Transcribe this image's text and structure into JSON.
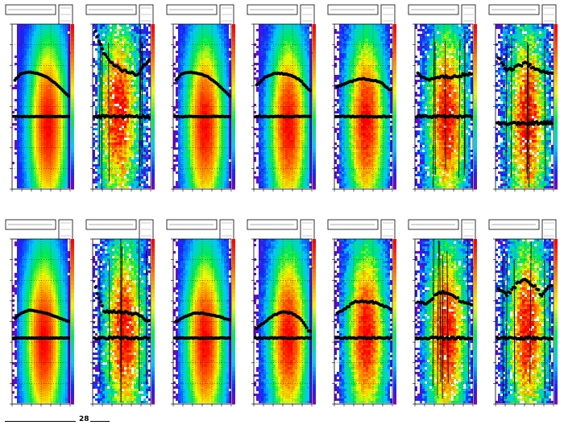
{
  "page": {
    "title": ""
  },
  "chart_data": [
    {
      "type": "heatmap",
      "panel": 1,
      "upper_curve": {
        "x": [
          0.05,
          0.15,
          0.3,
          0.45,
          0.6,
          0.75,
          0.9,
          0.98
        ],
        "y": [
          0.66,
          0.7,
          0.71,
          0.7,
          0.68,
          0.64,
          0.59,
          0.56
        ]
      },
      "lower_curve_y": 0.44,
      "hot_center": [
        0.62,
        0.38
      ],
      "noise": 0.1,
      "colorbar": {
        "colors": [
          "#7b00a8",
          "#0033ff",
          "#00ccff",
          "#00ee55",
          "#ffff00",
          "#ff7700",
          "#ff0000"
        ]
      }
    },
    {
      "type": "heatmap",
      "panel": 2,
      "upper_curve": {
        "x": [
          0.05,
          0.2,
          0.35,
          0.5,
          0.65,
          0.8,
          0.95
        ],
        "y": [
          0.95,
          0.82,
          0.76,
          0.72,
          0.7,
          0.7,
          0.78
        ]
      },
      "lower_curve_y": 0.44,
      "hot_center": [
        0.45,
        0.45
      ],
      "noise": 0.8,
      "colorbar": {
        "colors": [
          "#7b00a8",
          "#0033ff",
          "#00ccff",
          "#00ee55",
          "#ffff00",
          "#ff7700",
          "#ff0000"
        ]
      }
    },
    {
      "type": "heatmap",
      "panel": 3,
      "upper_curve": {
        "x": [
          0.05,
          0.15,
          0.3,
          0.45,
          0.6,
          0.75,
          0.9,
          0.98
        ],
        "y": [
          0.66,
          0.7,
          0.71,
          0.7,
          0.68,
          0.64,
          0.59,
          0.56
        ]
      },
      "lower_curve_y": 0.44,
      "hot_center": [
        0.55,
        0.38
      ],
      "noise": 0.15,
      "colorbar": {
        "colors": [
          "#7b00a8",
          "#0033ff",
          "#00ccff",
          "#00ee55",
          "#ffff00",
          "#ff7700",
          "#ff0000"
        ]
      }
    },
    {
      "type": "heatmap",
      "panel": 4,
      "upper_curve": {
        "x": [
          0.05,
          0.2,
          0.35,
          0.5,
          0.65,
          0.8,
          0.95
        ],
        "y": [
          0.63,
          0.68,
          0.7,
          0.7,
          0.69,
          0.66,
          0.6
        ]
      },
      "lower_curve_y": 0.44,
      "hot_center": [
        0.6,
        0.38
      ],
      "noise": 0.2,
      "colorbar": {
        "colors": [
          "#7b00a8",
          "#0033ff",
          "#00ccff",
          "#00ee55",
          "#ffff00",
          "#ff7700",
          "#ff0000"
        ]
      }
    },
    {
      "type": "heatmap",
      "panel": 5,
      "upper_curve": {
        "x": [
          0.05,
          0.2,
          0.35,
          0.5,
          0.65,
          0.8,
          0.95
        ],
        "y": [
          0.62,
          0.64,
          0.66,
          0.67,
          0.66,
          0.65,
          0.6
        ]
      },
      "lower_curve_y": 0.44,
      "hot_center": [
        0.55,
        0.4
      ],
      "noise": 0.3,
      "colorbar": {
        "colors": [
          "#7b00a8",
          "#0033ff",
          "#00ccff",
          "#00ee55",
          "#ffff00",
          "#ff7700",
          "#ff0000"
        ]
      }
    },
    {
      "type": "heatmap",
      "panel": 6,
      "upper_curve": {
        "x": [
          0.05,
          0.2,
          0.35,
          0.5,
          0.65,
          0.8,
          0.95
        ],
        "y": [
          0.7,
          0.66,
          0.68,
          0.68,
          0.68,
          0.69,
          0.7
        ]
      },
      "lower_curve_y": 0.44,
      "hot_center": [
        0.55,
        0.42
      ],
      "noise": 0.6,
      "colorbar": {
        "colors": [
          "#7b00a8",
          "#0033ff",
          "#00ccff",
          "#00ee55",
          "#ffff00",
          "#ff7700",
          "#ff0000"
        ]
      }
    },
    {
      "type": "heatmap",
      "panel": 7,
      "upper_curve": {
        "x": [
          0.05,
          0.2,
          0.35,
          0.5,
          0.65,
          0.8,
          0.95
        ],
        "y": [
          0.8,
          0.72,
          0.74,
          0.76,
          0.74,
          0.72,
          0.7
        ]
      },
      "lower_curve_y": 0.4,
      "hot_center": [
        0.55,
        0.4
      ],
      "noise": 0.9,
      "colorbar": {
        "colors": [
          "#7b00a8",
          "#0033ff",
          "#00ccff",
          "#00ee55",
          "#ffff00",
          "#ff7700",
          "#ff0000"
        ]
      }
    },
    {
      "type": "heatmap",
      "panel": 8,
      "upper_curve": {
        "x": [
          0.05,
          0.15,
          0.3,
          0.45,
          0.6,
          0.75,
          0.9,
          0.98
        ],
        "y": [
          0.52,
          0.55,
          0.57,
          0.56,
          0.55,
          0.53,
          0.51,
          0.5
        ]
      },
      "lower_curve_y": 0.4,
      "hot_center": [
        0.55,
        0.38
      ],
      "noise": 0.1,
      "colorbar": {
        "colors": [
          "#7b00a8",
          "#0033ff",
          "#00ccff",
          "#00ee55",
          "#ffff00",
          "#ff7700",
          "#ff0000"
        ]
      }
    },
    {
      "type": "heatmap",
      "panel": 9,
      "upper_curve": {
        "x": [
          0.05,
          0.2,
          0.35,
          0.5,
          0.65,
          0.8,
          0.95
        ],
        "y": [
          0.7,
          0.56,
          0.56,
          0.56,
          0.55,
          0.54,
          0.5
        ]
      },
      "lower_curve_y": 0.4,
      "hot_center": [
        0.55,
        0.42
      ],
      "noise": 0.7,
      "colorbar": {
        "colors": [
          "#7b00a8",
          "#0033ff",
          "#00ccff",
          "#00ee55",
          "#ffff00",
          "#ff7700",
          "#ff0000"
        ]
      }
    },
    {
      "type": "heatmap",
      "panel": 10,
      "upper_curve": {
        "x": [
          0.05,
          0.2,
          0.35,
          0.5,
          0.65,
          0.8,
          0.95
        ],
        "y": [
          0.5,
          0.53,
          0.55,
          0.55,
          0.54,
          0.53,
          0.51
        ]
      },
      "lower_curve_y": 0.4,
      "hot_center": [
        0.55,
        0.38
      ],
      "noise": 0.15,
      "colorbar": {
        "colors": [
          "#7b00a8",
          "#0033ff",
          "#00ccff",
          "#00ee55",
          "#ffff00",
          "#ff7700",
          "#ff0000"
        ]
      }
    },
    {
      "type": "heatmap",
      "panel": 11,
      "upper_curve": {
        "x": [
          0.05,
          0.2,
          0.35,
          0.5,
          0.65,
          0.8,
          0.95
        ],
        "y": [
          0.46,
          0.5,
          0.54,
          0.56,
          0.55,
          0.52,
          0.44
        ]
      },
      "lower_curve_y": 0.4,
      "hot_center": [
        0.6,
        0.4
      ],
      "noise": 0.25,
      "colorbar": {
        "colors": [
          "#7b00a8",
          "#0033ff",
          "#00ccff",
          "#00ee55",
          "#ffff00",
          "#ff7700",
          "#ff0000"
        ]
      }
    },
    {
      "type": "heatmap",
      "panel": 12,
      "upper_curve": {
        "x": [
          0.05,
          0.2,
          0.35,
          0.5,
          0.65,
          0.8,
          0.95
        ],
        "y": [
          0.55,
          0.58,
          0.62,
          0.62,
          0.62,
          0.6,
          0.58
        ]
      },
      "lower_curve_y": 0.4,
      "hot_center": [
        0.55,
        0.42
      ],
      "noise": 0.4,
      "colorbar": {
        "colors": [
          "#7b00a8",
          "#0033ff",
          "#00ccff",
          "#00ee55",
          "#ffff00",
          "#ff7700",
          "#ff0000"
        ]
      }
    },
    {
      "type": "heatmap",
      "panel": 13,
      "upper_curve": {
        "x": [
          0.05,
          0.2,
          0.35,
          0.5,
          0.65,
          0.8,
          0.95
        ],
        "y": [
          0.62,
          0.6,
          0.66,
          0.68,
          0.66,
          0.62,
          0.6
        ]
      },
      "lower_curve_y": 0.4,
      "hot_center": [
        0.55,
        0.42
      ],
      "noise": 0.6,
      "colorbar": {
        "colors": [
          "#7b00a8",
          "#0033ff",
          "#00ccff",
          "#00ee55",
          "#ffff00",
          "#ff7700",
          "#ff0000"
        ]
      }
    },
    {
      "type": "heatmap",
      "panel": 14,
      "upper_curve": {
        "x": [
          0.05,
          0.2,
          0.35,
          0.5,
          0.65,
          0.8,
          0.95
        ],
        "y": [
          0.7,
          0.66,
          0.72,
          0.76,
          0.72,
          0.66,
          0.72
        ]
      },
      "lower_curve_y": 0.4,
      "hot_center": [
        0.55,
        0.44
      ],
      "noise": 0.8,
      "colorbar": {
        "colors": [
          "#7b00a8",
          "#0033ff",
          "#00ccff",
          "#00ee55",
          "#ffff00",
          "#ff7700",
          "#ff0000"
        ]
      }
    }
  ],
  "footer": {
    "label": "28"
  }
}
